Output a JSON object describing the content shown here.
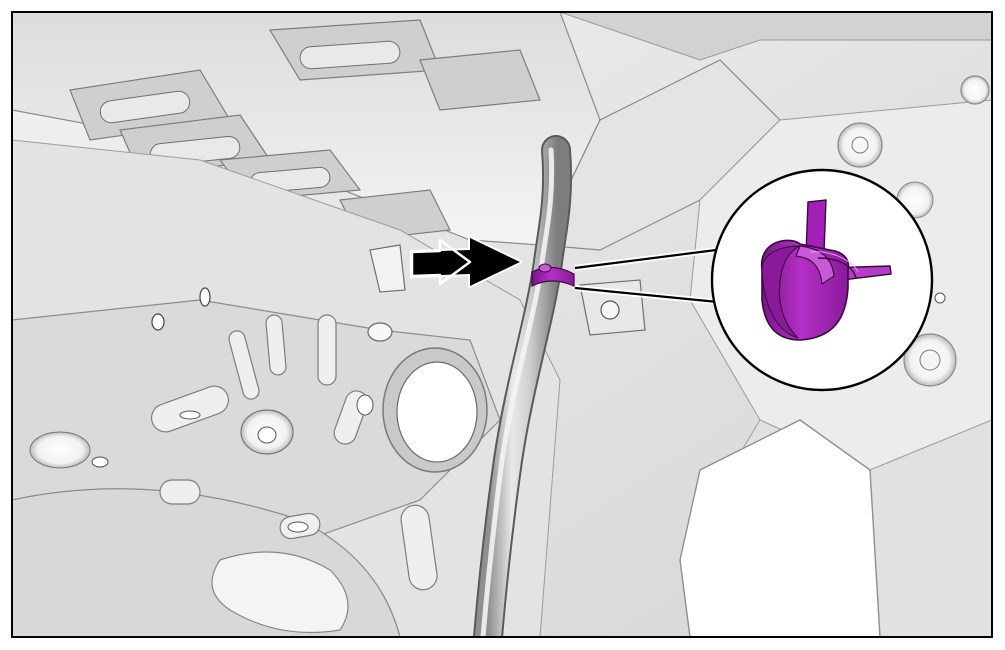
{
  "figure": {
    "type": "service-manual-illustration",
    "subject": "hose-clamp-location",
    "callout": "magnified-clamp-detail",
    "pointer": "double-arrow"
  },
  "colors": {
    "highlight": "#a31fb8",
    "highlight_dark": "#6d137c",
    "highlight_light": "#c85ad8",
    "panel_base": "#e6e6e6",
    "panel_light": "#f6f6f6",
    "panel_shadow": "#b9b9b9",
    "outline": "#000000",
    "background": "#ffffff"
  },
  "icons": {
    "pointer": "double-arrow-icon",
    "detail": "spring-clamp-icon"
  }
}
